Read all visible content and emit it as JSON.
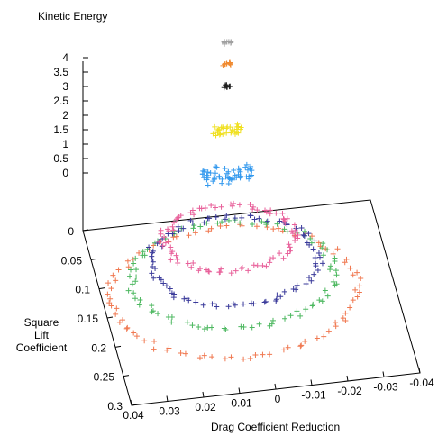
{
  "chart_data": {
    "type": "scatter",
    "projection": "3d",
    "marker": "plus",
    "title": "",
    "zlabel": "Kinetic Energy",
    "xlabel": "Drag Coefficient Reduction",
    "ylabel_lines": [
      "Square",
      "Lift",
      "Coefficient"
    ],
    "x_ticks": [
      "0.04",
      "0.03",
      "0.02",
      "0.01",
      "0",
      "-0.01",
      "-0.02",
      "-0.03",
      "-0.04"
    ],
    "y_ticks": [
      "0",
      "0.05",
      "0.1",
      "0.15",
      "0.2",
      "0.25",
      "0.3"
    ],
    "z_ticks": [
      "4",
      "3.5",
      "3",
      "2.5",
      "2",
      "1.5",
      "1",
      "0.5",
      "0"
    ],
    "x_range": [
      0.04,
      -0.04
    ],
    "y_range": [
      0,
      0.3
    ],
    "z_range": [
      0,
      4
    ],
    "grid": false,
    "legend": "none",
    "series": [
      {
        "color": "#f07850",
        "orbit": {
          "cx": 0.004,
          "cy": 0.13,
          "rx": 0.034,
          "ry": 0.11,
          "z": 0.0
        }
      },
      {
        "color": "#4db860",
        "orbit": {
          "cx": 0.003,
          "cy": 0.105,
          "rx": 0.028,
          "ry": 0.09,
          "z": 0.05
        }
      },
      {
        "color": "#3a3a9a",
        "orbit": {
          "cx": 0.002,
          "cy": 0.085,
          "rx": 0.023,
          "ry": 0.075,
          "z": 0.1
        }
      },
      {
        "color": "#e8609a",
        "orbit": {
          "cx": 0.002,
          "cy": 0.06,
          "rx": 0.018,
          "ry": 0.055,
          "z": 0.3
        }
      },
      {
        "color": "#3399ee",
        "cluster": {
          "x": 0.0,
          "y": 0.004,
          "z": 1.0
        }
      },
      {
        "color": "#f0e020",
        "cluster": {
          "x": 0.0,
          "y": 0.002,
          "z": 2.0
        }
      },
      {
        "color": "#202020",
        "cluster": {
          "x": 0.0,
          "y": 0.001,
          "z": 3.0
        }
      },
      {
        "color": "#f08a30",
        "cluster": {
          "x": 0.0,
          "y": 0.0,
          "z": 3.5
        }
      },
      {
        "color": "#a0a0a0",
        "cluster": {
          "x": 0.0,
          "y": 0.0,
          "z": 4.0
        }
      }
    ]
  }
}
